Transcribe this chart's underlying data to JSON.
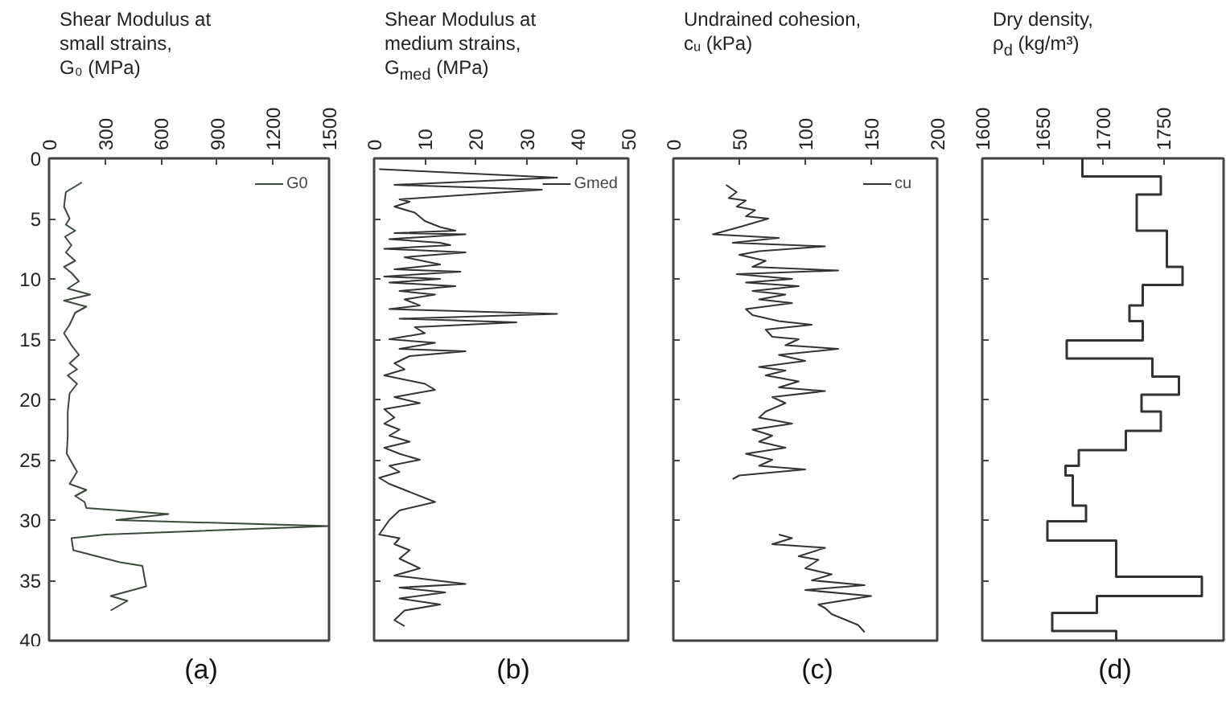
{
  "chart_data": [
    {
      "type": "line",
      "title": "Shear Modulus at\nsmall strains,\nG₀ (MPa)",
      "xlim": [
        0,
        1500
      ],
      "xticks": [
        0,
        300,
        600,
        900,
        1200,
        1500
      ],
      "ylim": [
        40,
        0
      ],
      "yticks": [
        0,
        5,
        10,
        15,
        20,
        25,
        30,
        35,
        40
      ],
      "legend": "top right",
      "annotations": [
        "(a)"
      ],
      "series": [
        {
          "name": "G0",
          "color": "#3a4a3a",
          "x": [
            175,
            90,
            80,
            110,
            90,
            140,
            85,
            120,
            90,
            140,
            80,
            120,
            160,
            100,
            220,
            80,
            200,
            140,
            110,
            80,
            120,
            160,
            110,
            150,
            100,
            150,
            110,
            100,
            100,
            95,
            150,
            110,
            200,
            140,
            190,
            200,
            640,
            360,
            1500,
            300,
            120,
            130,
            380,
            500,
            520,
            330,
            420,
            330
          ],
          "values": [
            2,
            2.8,
            4,
            5,
            5.5,
            6,
            6.5,
            7.2,
            7.8,
            8.5,
            9,
            9.5,
            10.2,
            10.8,
            11.3,
            11.8,
            12.3,
            12.8,
            13.8,
            14.5,
            15.5,
            16.3,
            17,
            17.5,
            18,
            18.7,
            19.5,
            21,
            23,
            24.5,
            26,
            27,
            27.5,
            28,
            28.5,
            29,
            29.5,
            30,
            30.5,
            31.2,
            31.5,
            32.5,
            33.5,
            33.8,
            35.5,
            36.3,
            36.7,
            37.5
          ]
        }
      ]
    },
    {
      "type": "line",
      "title": "Shear Modulus at\nmedium strains,\nG$_{med}$ (MPa)",
      "xlim": [
        0,
        50
      ],
      "xticks": [
        0,
        10,
        20,
        30,
        40,
        50
      ],
      "ylim": [
        40,
        0
      ],
      "yticks": [
        0,
        5,
        10,
        15,
        20,
        25,
        30,
        35,
        40
      ],
      "tick_labels": "x",
      "legend": "top right",
      "annotations": [
        "(b)"
      ],
      "series": [
        {
          "name": "Gmed",
          "color": "#333333",
          "x": [
            1,
            36,
            4,
            33,
            5,
            7,
            4,
            8,
            10,
            13,
            16,
            4,
            18,
            3,
            13,
            15,
            2,
            18,
            6,
            13,
            4,
            17,
            2,
            13,
            3,
            16,
            5,
            12,
            6,
            9,
            3,
            36,
            5,
            28,
            8,
            10,
            3,
            12,
            5,
            18,
            7,
            4,
            6,
            2,
            10,
            12,
            4,
            9,
            2,
            4,
            2,
            5,
            3,
            7,
            2,
            5,
            9,
            3,
            5,
            1,
            3,
            6,
            12,
            5,
            3,
            1,
            5,
            4,
            7,
            5,
            9,
            4,
            18,
            5,
            14,
            5,
            13,
            6,
            4,
            6
          ],
          "values": [
            0.9,
            1.6,
            2.2,
            2.6,
            3.4,
            3.6,
            4,
            4.5,
            5.2,
            5.7,
            6,
            6.2,
            6.3,
            6.7,
            7,
            7.2,
            7.5,
            7.8,
            8.2,
            8.8,
            9.2,
            9.4,
            9.8,
            10,
            10.3,
            10.6,
            11,
            11.3,
            11.7,
            12.2,
            12.5,
            12.9,
            13.3,
            13.6,
            14,
            14.5,
            15,
            15.3,
            15.8,
            16,
            16.4,
            17,
            17.5,
            18,
            18.7,
            19.2,
            19.8,
            20.3,
            20.8,
            21.5,
            22,
            22.5,
            23,
            23.5,
            24,
            24.5,
            25,
            25.5,
            26,
            26.5,
            27,
            27.5,
            28.5,
            29.2,
            30,
            31.2,
            31.5,
            32,
            32.5,
            33.2,
            34,
            34.6,
            35.3,
            35.6,
            36,
            36.5,
            37,
            37.5,
            38.3,
            38.8
          ]
        }
      ]
    },
    {
      "type": "line",
      "title": "Undrained cohesion,\ncᵤ (kPa)",
      "xlim": [
        0,
        200
      ],
      "xticks": [
        0,
        50,
        100,
        150,
        200
      ],
      "ylim": [
        40,
        0
      ],
      "yticks": [
        0,
        5,
        10,
        15,
        20,
        25,
        30,
        35,
        40
      ],
      "tick_labels": "x",
      "legend": "top right",
      "annotations": [
        "(c)"
      ],
      "series": [
        {
          "name": "cu",
          "color": "#333333",
          "x": [
            40,
            48,
            42,
            55,
            48,
            62,
            55,
            72,
            50,
            30,
            80,
            45,
            115,
            65,
            50,
            70,
            60,
            125,
            48,
            90,
            55,
            95,
            60,
            85,
            65,
            90,
            55,
            60,
            80,
            105,
            70,
            75,
            95,
            85,
            125,
            80,
            100,
            65,
            85,
            70,
            95,
            80,
            115,
            75,
            85,
            70,
            65,
            90,
            60,
            75,
            65,
            85,
            55,
            75,
            65,
            100,
            50,
            45,
            null,
            80,
            90,
            75,
            115,
            95,
            110,
            100,
            120,
            105,
            145,
            100,
            150,
            110,
            115,
            120,
            140,
            145
          ],
          "values": [
            2.2,
            2.8,
            3.3,
            3.5,
            4,
            4.3,
            4.8,
            5,
            5.7,
            6.3,
            6.6,
            7,
            7.3,
            7.7,
            8,
            8.5,
            9,
            9.3,
            9.6,
            10,
            10.3,
            10.6,
            11,
            11.3,
            11.7,
            12,
            12.5,
            13,
            13.5,
            13.8,
            14.2,
            14.8,
            15,
            15.5,
            15.8,
            16.3,
            16.8,
            17.3,
            17.6,
            18,
            18.5,
            19,
            19.3,
            19.8,
            20.3,
            21,
            21.5,
            22,
            22.5,
            23,
            23.5,
            24,
            24.5,
            25,
            25.5,
            25.8,
            26.3,
            26.6,
            null,
            31.2,
            31.5,
            32,
            32.3,
            33,
            33.3,
            34,
            34.5,
            35,
            35.4,
            35.8,
            36.3,
            37,
            37.3,
            37.8,
            38.7,
            39.3
          ]
        }
      ]
    },
    {
      "type": "step",
      "title": "Dry density,\nρ$_{d}$ (kg/m³)",
      "xlim": [
        1600,
        1800
      ],
      "xticks": [
        1600,
        1650,
        1700,
        1750
      ],
      "ylim": [
        40,
        0
      ],
      "yticks": [
        0,
        5,
        10,
        15,
        20,
        25,
        30,
        35,
        40
      ],
      "tick_labels": "x",
      "annotations": [
        "(d)"
      ],
      "series": [
        {
          "color": "#333333",
          "x": [
            1683,
            1748,
            1728,
            1753,
            1766,
            1733,
            1722,
            1733,
            1670,
            1741,
            1763,
            1732,
            1748,
            1719,
            1680,
            1669,
            1675,
            1686,
            1654,
            1711,
            1782,
            1695,
            1658,
            1711,
            1711
          ],
          "values": [
            0,
            1.5,
            3.0,
            6.0,
            9.0,
            10.5,
            12.2,
            13.5,
            15.1,
            16.6,
            18.1,
            19.6,
            21.0,
            22.6,
            24.2,
            25.5,
            26.3,
            28.8,
            30.1,
            31.7,
            34.7,
            36.3,
            37.7,
            39.2,
            40
          ]
        }
      ]
    }
  ]
}
